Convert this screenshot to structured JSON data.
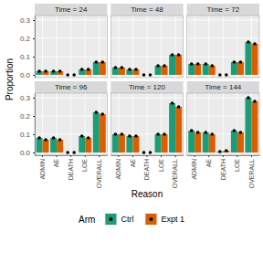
{
  "chart_data": {
    "type": "bar",
    "x_label": "Reason",
    "y_label": "Proportion",
    "legend_title": "Arm",
    "legend": "bottom",
    "grid": true,
    "marker": "circle",
    "categories": [
      "ADMIN",
      "AE",
      "DEATH",
      "LOE",
      "OVERALL"
    ],
    "ylim": [
      -0.015,
      0.325
    ],
    "yticks": [
      {
        "value": 0,
        "label": "0.0"
      },
      {
        "value": 0.1,
        "label": "0.1"
      },
      {
        "value": 0.2,
        "label": "0.2"
      },
      {
        "value": 0.3,
        "label": "0.3"
      }
    ],
    "series": [
      {
        "name": "Ctrl",
        "color": "#1B9E77"
      },
      {
        "name": "Expt 1",
        "color": "#D95F02"
      }
    ],
    "panels": [
      {
        "title": "Time = 24",
        "series": [
          {
            "values": [
              0.02,
              0.02,
              0,
              0.03,
              0.07
            ]
          },
          {
            "values": [
              0.02,
              0.02,
              0,
              0.03,
              0.07
            ]
          }
        ]
      },
      {
        "title": "Time = 48",
        "series": [
          {
            "values": [
              0.04,
              0.03,
              0,
              0.05,
              0.11
            ]
          },
          {
            "values": [
              0.04,
              0.03,
              0,
              0.05,
              0.11
            ]
          }
        ]
      },
      {
        "title": "Time = 72",
        "series": [
          {
            "values": [
              0.06,
              0.06,
              0,
              0.07,
              0.18
            ]
          },
          {
            "values": [
              0.06,
              0.05,
              0,
              0.07,
              0.17
            ]
          }
        ]
      },
      {
        "title": "Time = 96",
        "series": [
          {
            "values": [
              0.08,
              0.08,
              0,
              0.09,
              0.22
            ]
          },
          {
            "values": [
              0.07,
              0.07,
              0,
              0.08,
              0.21
            ]
          }
        ]
      },
      {
        "title": "Time = 120",
        "series": [
          {
            "values": [
              0.1,
              0.09,
              0,
              0.1,
              0.27
            ]
          },
          {
            "values": [
              0.1,
              0.09,
              0,
              0.1,
              0.25
            ]
          }
        ]
      },
      {
        "title": "Time = 144",
        "series": [
          {
            "values": [
              0.12,
              0.11,
              0.005,
              0.12,
              0.3
            ]
          },
          {
            "values": [
              0.11,
              0.1,
              0.01,
              0.11,
              0.28
            ]
          }
        ]
      }
    ]
  }
}
